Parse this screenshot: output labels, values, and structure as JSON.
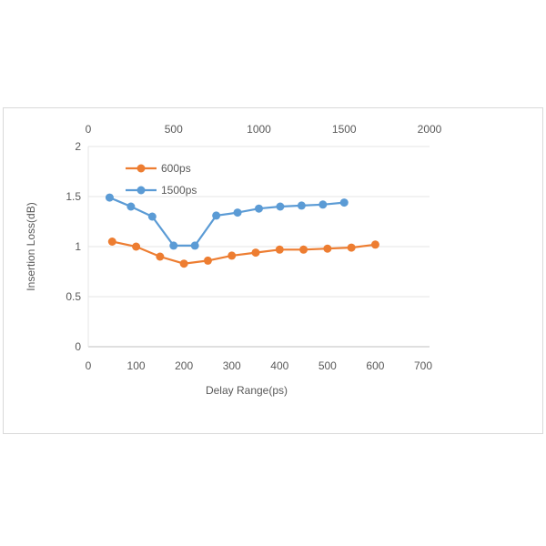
{
  "chart_data": {
    "type": "line",
    "xlabel": "Delay Range(ps)",
    "ylabel": "Insertion Loss(dB)",
    "xlim": [
      0,
      700
    ],
    "x2lim": [
      0,
      2000
    ],
    "ylim": [
      0,
      2
    ],
    "xticks": [
      0,
      100,
      200,
      300,
      400,
      500,
      600,
      700
    ],
    "x2ticks": [
      0,
      500,
      1000,
      1500,
      2000
    ],
    "yticks": [
      0,
      0.5,
      1,
      1.5,
      2
    ],
    "ytick_labels": [
      "0",
      "0.5",
      "1",
      "1.5",
      "2"
    ],
    "grid": true,
    "legend_position": "top-left",
    "series": [
      {
        "name": "600ps",
        "axis": "bottom",
        "color": "#ed7d31",
        "x": [
          50,
          100,
          150,
          200,
          250,
          300,
          350,
          400,
          450,
          500,
          550,
          600
        ],
        "y": [
          1.05,
          1.0,
          0.9,
          0.83,
          0.86,
          0.91,
          0.94,
          0.97,
          0.97,
          0.98,
          0.99,
          1.02
        ]
      },
      {
        "name": "1500ps",
        "axis": "top",
        "color": "#5b9bd5",
        "x": [
          125,
          250,
          375,
          500,
          625,
          750,
          875,
          1000,
          1125,
          1250,
          1375,
          1500
        ],
        "y": [
          1.49,
          1.4,
          1.3,
          1.01,
          1.01,
          1.31,
          1.34,
          1.38,
          1.4,
          1.41,
          1.42,
          1.44
        ]
      }
    ]
  }
}
